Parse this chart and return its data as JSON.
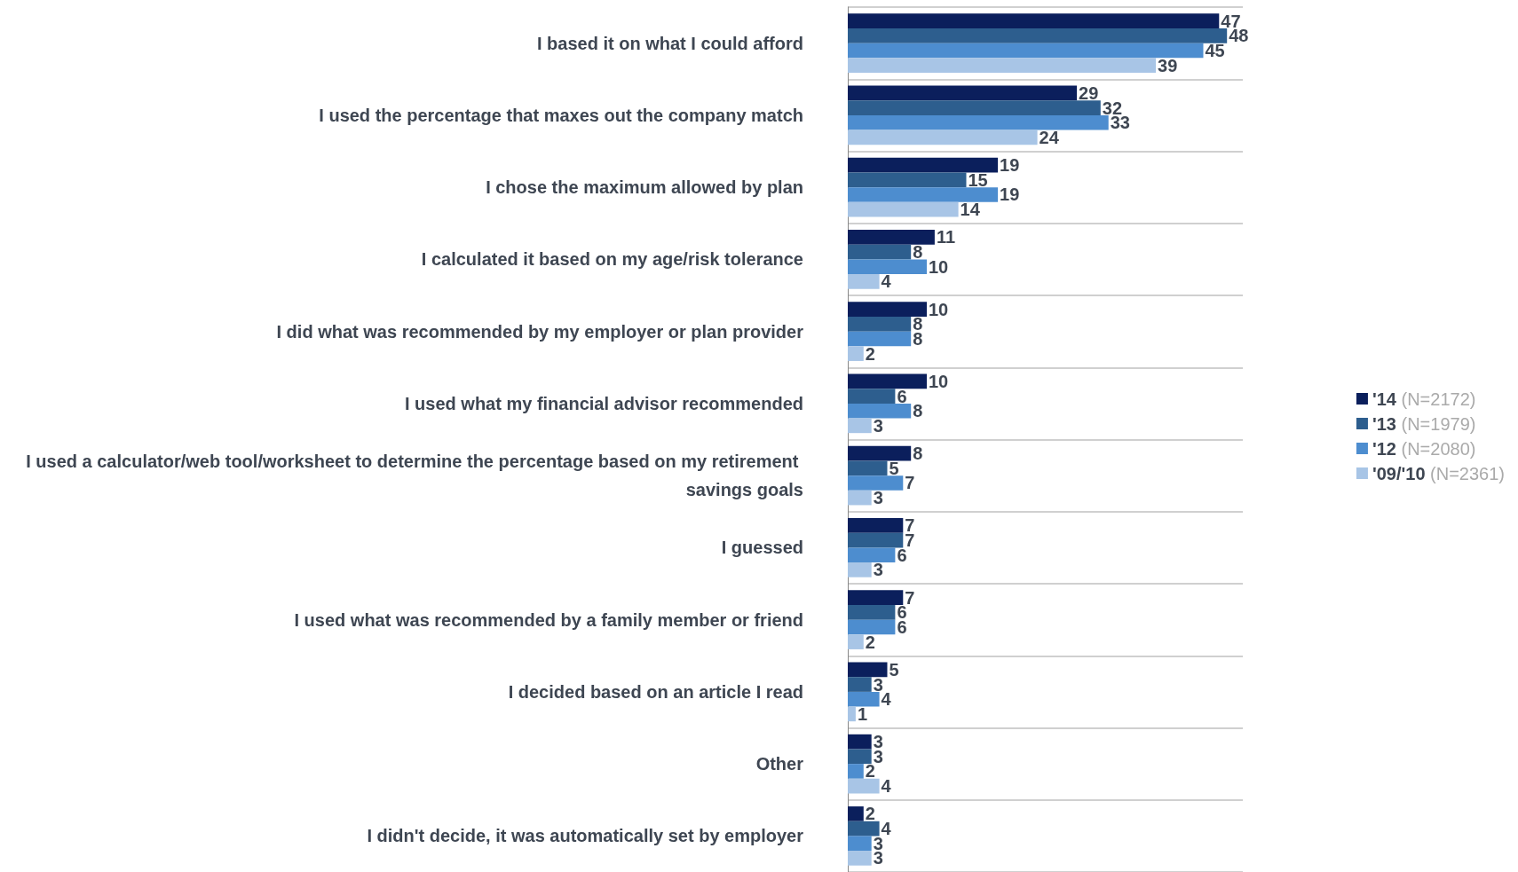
{
  "chart_data": {
    "type": "bar",
    "orientation": "horizontal",
    "categories": [
      "I based it on what I could afford",
      "I used the percentage that maxes out the company match",
      "I chose the maximum allowed by plan",
      "I calculated it based on my age/risk tolerance",
      "I did what was recommended by my employer or plan provider",
      "I used what my financial advisor recommended",
      "I used a calculator/web tool/worksheet to determine the percentage based on my retirement savings goals",
      "I guessed",
      "I used what was recommended by a family member or friend",
      "I decided based on an article I read",
      "Other",
      "I didn't decide, it was automatically set by employer"
    ],
    "series": [
      {
        "name": "'14 (N=2172)",
        "color": "#0b1f5c",
        "values": [
          47,
          29,
          19,
          11,
          10,
          10,
          8,
          7,
          7,
          5,
          3,
          2
        ]
      },
      {
        "name": "'13 (N=1979)",
        "color": "#2d5e8e",
        "values": [
          48,
          32,
          15,
          8,
          8,
          6,
          5,
          7,
          6,
          3,
          3,
          4
        ]
      },
      {
        "name": "'12 (N=2080)",
        "color": "#4d8dcf",
        "values": [
          45,
          33,
          19,
          10,
          8,
          8,
          7,
          6,
          6,
          4,
          2,
          3
        ]
      },
      {
        "name": "'09/'10 (N=2361)",
        "color": "#a8c5e6",
        "values": [
          39,
          24,
          14,
          4,
          2,
          3,
          3,
          3,
          2,
          1,
          4,
          3
        ]
      }
    ],
    "data_labels": true,
    "grid": "y",
    "legend": "right"
  }
}
